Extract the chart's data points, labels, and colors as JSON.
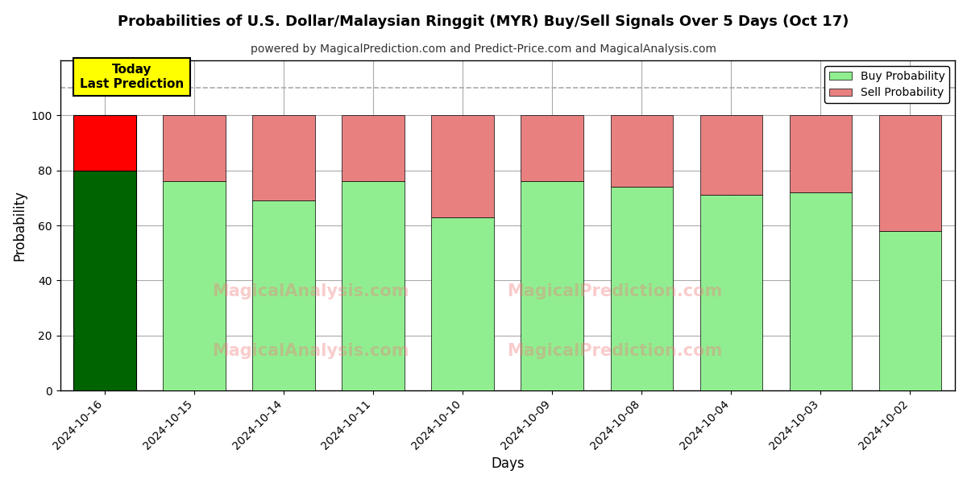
{
  "title": "Probabilities of U.S. Dollar/Malaysian Ringgit (MYR) Buy/Sell Signals Over 5 Days (Oct 17)",
  "subtitle": "powered by MagicalPrediction.com and Predict-Price.com and MagicalAnalysis.com",
  "xlabel": "Days",
  "ylabel": "Probability",
  "dates": [
    "2024-10-16",
    "2024-10-15",
    "2024-10-14",
    "2024-10-11",
    "2024-10-10",
    "2024-10-09",
    "2024-10-08",
    "2024-10-04",
    "2024-10-03",
    "2024-10-02"
  ],
  "buy_values": [
    80,
    76,
    69,
    76,
    63,
    76,
    74,
    71,
    72,
    58
  ],
  "sell_values": [
    20,
    24,
    31,
    24,
    37,
    24,
    26,
    29,
    28,
    42
  ],
  "today_buy_color": "#006400",
  "today_sell_color": "#FF0000",
  "buy_color": "#90EE90",
  "sell_color": "#E88080",
  "today_box_color": "#FFFF00",
  "today_box_text": "Today\nLast Prediction",
  "ylim": [
    0,
    120
  ],
  "yticks": [
    0,
    20,
    40,
    60,
    80,
    100
  ],
  "dashed_line_y": 110,
  "watermark1": "MagicalAnalysis.com",
  "watermark2": "MagicalPrediction.com",
  "legend_buy": "Buy Probability",
  "legend_sell": "Sell Probability",
  "background_color": "#ffffff",
  "grid_color": "#aaaaaa"
}
